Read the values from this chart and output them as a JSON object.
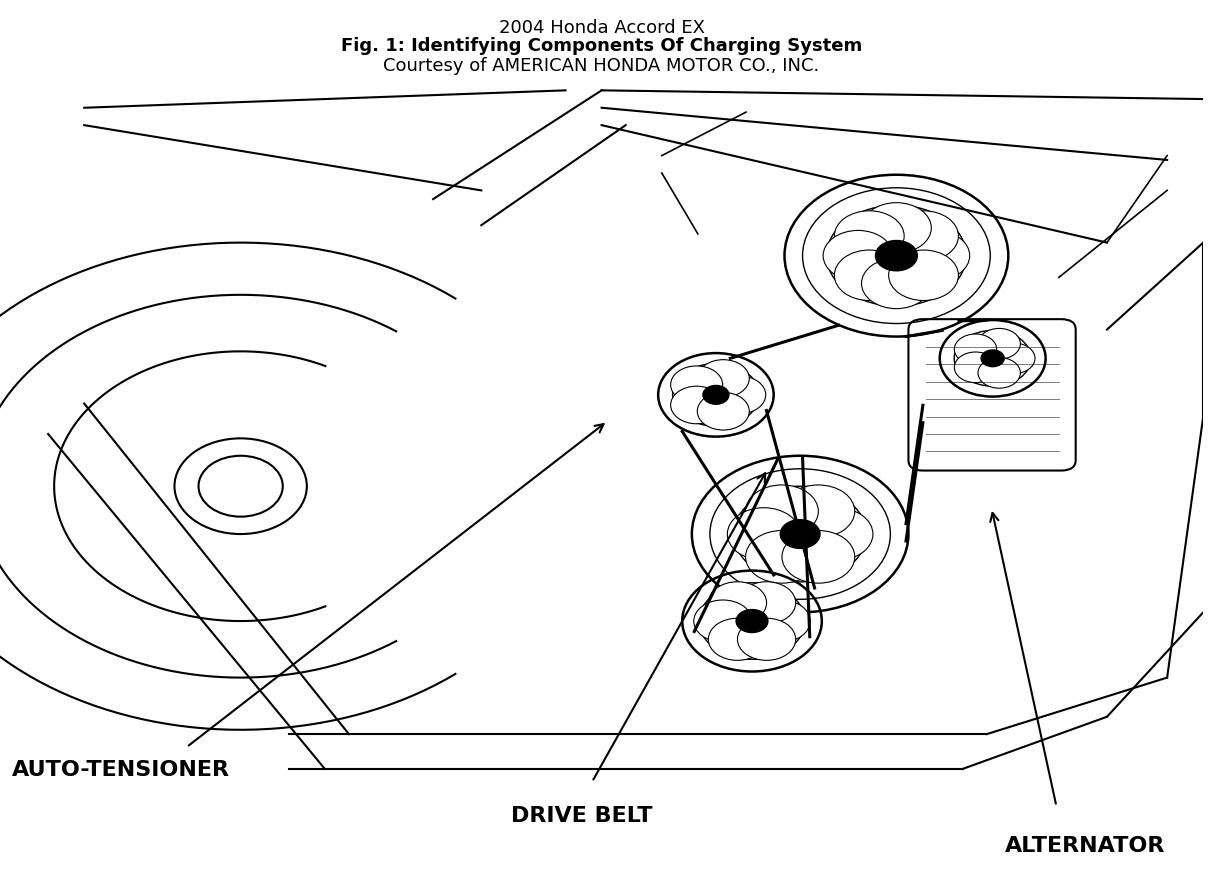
{
  "title_line1": "2004 Honda Accord EX",
  "title_line2": "Fig. 1: Identifying Components Of Charging System",
  "title_line3": "Courtesy of AMERICAN HONDA MOTOR CO., INC.",
  "title_fontsize": 13,
  "subtitle_fontsize": 13,
  "courtesy_fontsize": 13,
  "bg_color": "#ffffff",
  "line_color": "#000000",
  "label_auto_tensioner": "AUTO-TENSIONER",
  "label_drive_belt": "DRIVE BELT",
  "label_alternator": "ALTERNATOR",
  "label_fontsize": 16,
  "label_fontweight": "bold"
}
